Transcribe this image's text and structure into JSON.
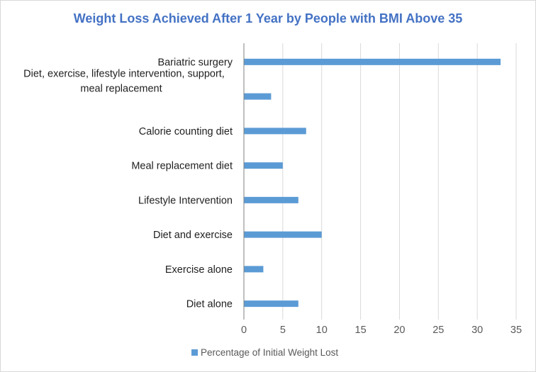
{
  "chart_data": {
    "type": "bar",
    "orientation": "horizontal",
    "title": "Weight Loss Achieved After 1 Year by People with BMI Above 35",
    "categories": [
      [
        "Bariatric surgery"
      ],
      [
        "Diet, exercise, lifestyle intervention, support,",
        "meal replacement"
      ],
      [
        "Calorie counting diet"
      ],
      [
        "Meal replacement diet"
      ],
      [
        "Lifestyle Intervention"
      ],
      [
        "Diet and exercise"
      ],
      [
        "Exercise alone"
      ],
      [
        "Diet alone"
      ]
    ],
    "series": [
      {
        "name": "Percentage of Initial Weight Lost",
        "values": [
          33,
          3.5,
          8,
          5,
          7,
          10,
          2.5,
          7
        ],
        "color": "#5b9bd5"
      }
    ],
    "xlim": [
      0,
      35
    ],
    "xticks": [
      0,
      5,
      10,
      15,
      20,
      25,
      30,
      35
    ],
    "grid": "vertical",
    "legend_position": "bottom",
    "xlabel": "",
    "ylabel": ""
  }
}
